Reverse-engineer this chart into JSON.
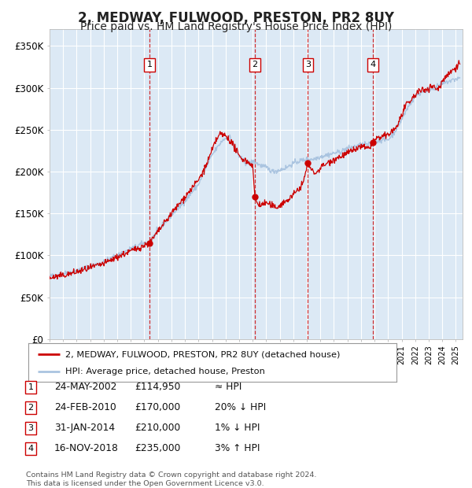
{
  "title": "2, MEDWAY, FULWOOD, PRESTON, PR2 8UY",
  "subtitle": "Price paid vs. HM Land Registry's House Price Index (HPI)",
  "title_fontsize": 12,
  "subtitle_fontsize": 10,
  "background_color": "#ffffff",
  "plot_bg_color": "#dce9f5",
  "grid_color": "#ffffff",
  "ylim": [
    0,
    370000
  ],
  "yticks": [
    0,
    50000,
    100000,
    150000,
    200000,
    250000,
    300000,
    350000
  ],
  "xlim_start": 1995.0,
  "xlim_end": 2025.5,
  "hpi_color": "#aac4e0",
  "price_color": "#cc0000",
  "sale_marker_color": "#cc0000",
  "sale_marker_size": 6,
  "vline_color": "#cc0000",
  "vline_alpha": 0.8,
  "legend_label_price": "2, MEDWAY, FULWOOD, PRESTON, PR2 8UY (detached house)",
  "legend_label_hpi": "HPI: Average price, detached house, Preston",
  "footer_text": "Contains HM Land Registry data © Crown copyright and database right 2024.\nThis data is licensed under the Open Government Licence v3.0.",
  "sales": [
    {
      "num": 1,
      "date_year": 2002.39,
      "price": 114950,
      "label": "1",
      "date_str": "24-MAY-2002",
      "price_str": "£114,950",
      "hpi_str": "≈ HPI"
    },
    {
      "num": 2,
      "date_year": 2010.15,
      "price": 170000,
      "label": "2",
      "date_str": "24-FEB-2010",
      "price_str": "£170,000",
      "hpi_str": "20% ↓ HPI"
    },
    {
      "num": 3,
      "date_year": 2014.08,
      "price": 210000,
      "label": "3",
      "date_str": "31-JAN-2014",
      "price_str": "£210,000",
      "hpi_str": "1% ↓ HPI"
    },
    {
      "num": 4,
      "date_year": 2018.88,
      "price": 235000,
      "label": "4",
      "date_str": "16-NOV-2018",
      "price_str": "£235,000",
      "hpi_str": "3% ↑ HPI"
    }
  ]
}
